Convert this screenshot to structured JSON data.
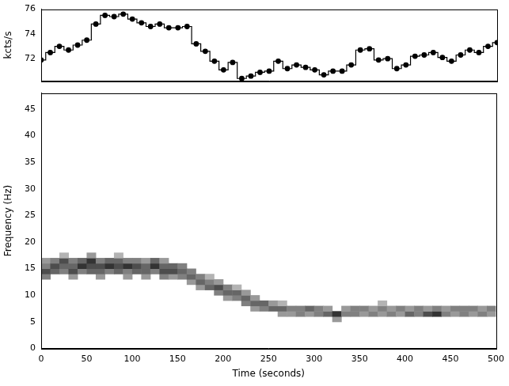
{
  "chart_data": [
    {
      "type": "line",
      "y_label": "kcts/s",
      "xlim": [
        0,
        500
      ],
      "ylim": [
        70.2,
        76
      ],
      "yticks": [
        72,
        74,
        76
      ],
      "tick_labels": "y",
      "grid": false,
      "line_style": "steps",
      "marker": "circle",
      "color": "#000000",
      "x": [
        0,
        10,
        20,
        30,
        40,
        50,
        60,
        70,
        80,
        90,
        100,
        110,
        120,
        130,
        140,
        150,
        160,
        170,
        180,
        190,
        200,
        210,
        220,
        230,
        240,
        250,
        260,
        270,
        280,
        290,
        300,
        310,
        320,
        330,
        340,
        350,
        360,
        370,
        380,
        390,
        400,
        410,
        420,
        430,
        440,
        450,
        460,
        470,
        480,
        490,
        500
      ],
      "values": [
        71.9,
        72.5,
        73.0,
        72.7,
        73.1,
        73.5,
        74.8,
        75.5,
        75.4,
        75.6,
        75.2,
        74.9,
        74.6,
        74.8,
        74.5,
        74.5,
        74.6,
        73.2,
        72.6,
        71.8,
        71.1,
        71.7,
        70.4,
        70.6,
        70.9,
        71.0,
        71.8,
        71.2,
        71.5,
        71.3,
        71.1,
        70.7,
        71.0,
        71.0,
        71.5,
        72.7,
        72.8,
        71.9,
        72.0,
        71.2,
        71.5,
        72.2,
        72.3,
        72.5,
        72.1,
        71.8,
        72.3,
        72.7,
        72.5,
        73.0,
        73.3
      ]
    },
    {
      "type": "heatmap",
      "x_label": "Time (seconds)",
      "y_label": "Frequency (Hz)",
      "xlim": [
        0,
        500
      ],
      "ylim": [
        0,
        48
      ],
      "xticks": [
        0,
        50,
        100,
        150,
        200,
        250,
        300,
        350,
        400,
        450,
        500
      ],
      "yticks": [
        0,
        5,
        10,
        15,
        20,
        25,
        30,
        35,
        40,
        45
      ],
      "grid": false,
      "color": "#000000",
      "cell_width": 10,
      "cell_height": 1,
      "cells": [
        [
          0,
          13,
          0.5
        ],
        [
          0,
          14,
          0.7
        ],
        [
          0,
          15,
          0.5
        ],
        [
          0,
          16,
          0.4
        ],
        [
          10,
          14,
          0.6
        ],
        [
          10,
          15,
          0.7
        ],
        [
          10,
          16,
          0.5
        ],
        [
          20,
          14,
          0.5
        ],
        [
          20,
          15,
          0.6
        ],
        [
          20,
          16,
          0.7
        ],
        [
          20,
          17,
          0.3
        ],
        [
          30,
          13,
          0.4
        ],
        [
          30,
          14,
          0.7
        ],
        [
          30,
          15,
          0.6
        ],
        [
          30,
          16,
          0.5
        ],
        [
          40,
          14,
          0.5
        ],
        [
          40,
          15,
          0.8
        ],
        [
          40,
          16,
          0.6
        ],
        [
          50,
          14,
          0.6
        ],
        [
          50,
          15,
          0.7
        ],
        [
          50,
          16,
          0.8
        ],
        [
          50,
          17,
          0.4
        ],
        [
          60,
          13,
          0.4
        ],
        [
          60,
          14,
          0.6
        ],
        [
          60,
          15,
          0.7
        ],
        [
          60,
          16,
          0.5
        ],
        [
          70,
          14,
          0.5
        ],
        [
          70,
          15,
          0.8
        ],
        [
          70,
          16,
          0.6
        ],
        [
          80,
          14,
          0.6
        ],
        [
          80,
          15,
          0.7
        ],
        [
          80,
          16,
          0.6
        ],
        [
          80,
          17,
          0.3
        ],
        [
          90,
          13,
          0.4
        ],
        [
          90,
          14,
          0.5
        ],
        [
          90,
          15,
          0.8
        ],
        [
          90,
          16,
          0.5
        ],
        [
          100,
          14,
          0.6
        ],
        [
          100,
          15,
          0.7
        ],
        [
          100,
          16,
          0.5
        ],
        [
          110,
          13,
          0.4
        ],
        [
          110,
          14,
          0.6
        ],
        [
          110,
          15,
          0.6
        ],
        [
          110,
          16,
          0.4
        ],
        [
          120,
          14,
          0.5
        ],
        [
          120,
          15,
          0.8
        ],
        [
          120,
          16,
          0.6
        ],
        [
          130,
          13,
          0.5
        ],
        [
          130,
          14,
          0.7
        ],
        [
          130,
          15,
          0.6
        ],
        [
          130,
          16,
          0.4
        ],
        [
          140,
          13,
          0.4
        ],
        [
          140,
          14,
          0.7
        ],
        [
          140,
          15,
          0.6
        ],
        [
          150,
          13,
          0.5
        ],
        [
          150,
          14,
          0.6
        ],
        [
          150,
          15,
          0.5
        ],
        [
          160,
          12,
          0.4
        ],
        [
          160,
          13,
          0.6
        ],
        [
          160,
          14,
          0.5
        ],
        [
          170,
          11,
          0.4
        ],
        [
          170,
          12,
          0.6
        ],
        [
          170,
          13,
          0.5
        ],
        [
          180,
          11,
          0.6
        ],
        [
          180,
          12,
          0.5
        ],
        [
          180,
          13,
          0.3
        ],
        [
          190,
          10,
          0.5
        ],
        [
          190,
          11,
          0.7
        ],
        [
          190,
          12,
          0.4
        ],
        [
          200,
          9,
          0.4
        ],
        [
          200,
          10,
          0.6
        ],
        [
          200,
          11,
          0.5
        ],
        [
          210,
          9,
          0.5
        ],
        [
          210,
          10,
          0.6
        ],
        [
          210,
          11,
          0.3
        ],
        [
          220,
          8,
          0.5
        ],
        [
          220,
          9,
          0.6
        ],
        [
          220,
          10,
          0.4
        ],
        [
          230,
          7,
          0.4
        ],
        [
          230,
          8,
          0.6
        ],
        [
          230,
          9,
          0.4
        ],
        [
          240,
          7,
          0.5
        ],
        [
          240,
          8,
          0.6
        ],
        [
          250,
          7,
          0.6
        ],
        [
          250,
          8,
          0.4
        ],
        [
          260,
          6,
          0.4
        ],
        [
          260,
          7,
          0.6
        ],
        [
          260,
          8,
          0.3
        ],
        [
          270,
          6,
          0.4
        ],
        [
          270,
          7,
          0.5
        ],
        [
          280,
          6,
          0.5
        ],
        [
          280,
          7,
          0.5
        ],
        [
          290,
          6,
          0.4
        ],
        [
          290,
          7,
          0.6
        ],
        [
          300,
          6,
          0.5
        ],
        [
          300,
          7,
          0.5
        ],
        [
          310,
          6,
          0.6
        ],
        [
          310,
          7,
          0.4
        ],
        [
          320,
          5,
          0.4
        ],
        [
          320,
          6,
          0.8
        ],
        [
          330,
          6,
          0.5
        ],
        [
          330,
          7,
          0.4
        ],
        [
          340,
          6,
          0.5
        ],
        [
          340,
          7,
          0.5
        ],
        [
          350,
          6,
          0.4
        ],
        [
          350,
          7,
          0.5
        ],
        [
          360,
          6,
          0.5
        ],
        [
          360,
          7,
          0.4
        ],
        [
          370,
          6,
          0.4
        ],
        [
          370,
          7,
          0.5
        ],
        [
          370,
          8,
          0.3
        ],
        [
          380,
          6,
          0.5
        ],
        [
          380,
          7,
          0.4
        ],
        [
          390,
          6,
          0.4
        ],
        [
          390,
          7,
          0.5
        ],
        [
          400,
          6,
          0.6
        ],
        [
          400,
          7,
          0.4
        ],
        [
          410,
          6,
          0.5
        ],
        [
          410,
          7,
          0.5
        ],
        [
          420,
          6,
          0.7
        ],
        [
          420,
          7,
          0.4
        ],
        [
          430,
          6,
          0.8
        ],
        [
          430,
          7,
          0.5
        ],
        [
          440,
          6,
          0.5
        ],
        [
          440,
          7,
          0.4
        ],
        [
          450,
          6,
          0.4
        ],
        [
          450,
          7,
          0.5
        ],
        [
          460,
          6,
          0.5
        ],
        [
          460,
          7,
          0.5
        ],
        [
          470,
          6,
          0.4
        ],
        [
          470,
          7,
          0.5
        ],
        [
          480,
          6,
          0.5
        ],
        [
          480,
          7,
          0.4
        ],
        [
          490,
          6,
          0.4
        ],
        [
          490,
          7,
          0.5
        ]
      ]
    }
  ]
}
